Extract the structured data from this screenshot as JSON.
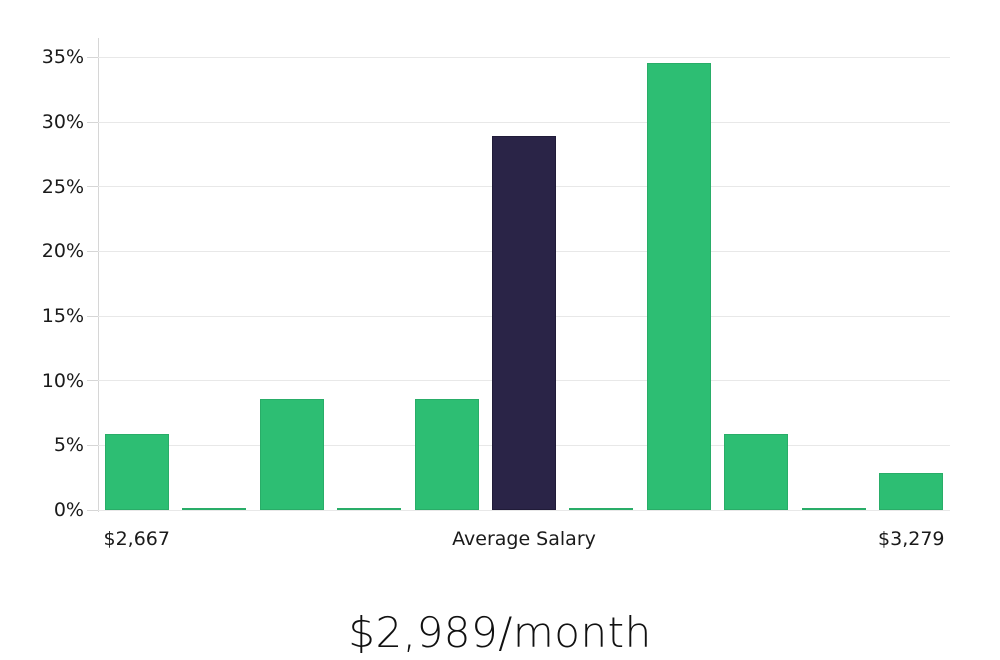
{
  "chart_data": {
    "type": "bar",
    "title": "",
    "footer_title": "$2,989/month",
    "xlabel": "",
    "ylabel": "",
    "categories": [
      "$2,667",
      "",
      "",
      "",
      "",
      "Average Salary",
      "",
      "",
      "",
      "",
      "$3,279"
    ],
    "values": [
      5.9,
      0.1,
      8.6,
      0.1,
      8.6,
      28.9,
      0.1,
      34.6,
      5.9,
      0.1,
      2.9
    ],
    "highlight_index": 5,
    "highlight_meaning": "Average Salary bar",
    "y_ticks": [
      0,
      5,
      10,
      15,
      20,
      25,
      30,
      35
    ],
    "y_tick_labels": [
      "0%",
      "5%",
      "10%",
      "15%",
      "20%",
      "25%",
      "30%",
      "35%"
    ],
    "ylim": [
      0,
      36.5
    ],
    "grid": true,
    "legend": false,
    "colors": {
      "bar": "#2dbe73",
      "highlight_bar": "#2a2447",
      "gridline": "#e8e8e8",
      "axis_line": "#d6d6d6",
      "tick_text": "#1a1a1a",
      "title_text": "#111111",
      "background": "#ffffff"
    }
  }
}
